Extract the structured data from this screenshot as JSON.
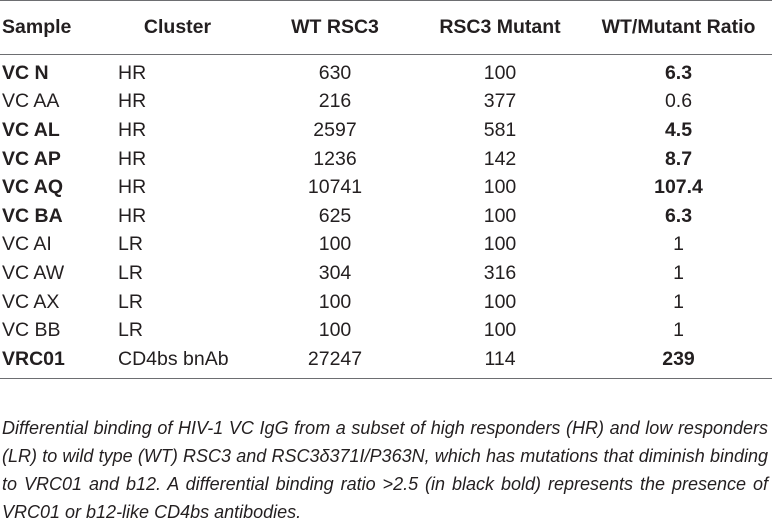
{
  "table": {
    "headers": [
      "Sample",
      "Cluster",
      "WT RSC3",
      "RSC3 Mutant",
      "WT/Mutant Ratio"
    ],
    "rows": [
      {
        "sample": "VC N",
        "cluster": "HR",
        "wt": "630",
        "mutant": "100",
        "ratio": "6.3",
        "bold": true
      },
      {
        "sample": "VC AA",
        "cluster": "HR",
        "wt": "216",
        "mutant": "377",
        "ratio": "0.6",
        "bold": false
      },
      {
        "sample": "VC AL",
        "cluster": "HR",
        "wt": "2597",
        "mutant": "581",
        "ratio": "4.5",
        "bold": true
      },
      {
        "sample": "VC AP",
        "cluster": "HR",
        "wt": "1236",
        "mutant": "142",
        "ratio": "8.7",
        "bold": true
      },
      {
        "sample": "VC AQ",
        "cluster": "HR",
        "wt": "10741",
        "mutant": "100",
        "ratio": "107.4",
        "bold": true
      },
      {
        "sample": "VC BA",
        "cluster": "HR",
        "wt": "625",
        "mutant": "100",
        "ratio": "6.3",
        "bold": true
      },
      {
        "sample": "VC AI",
        "cluster": "LR",
        "wt": "100",
        "mutant": "100",
        "ratio": "1",
        "bold": false
      },
      {
        "sample": "VC AW",
        "cluster": "LR",
        "wt": "304",
        "mutant": "316",
        "ratio": "1",
        "bold": false
      },
      {
        "sample": "VC AX",
        "cluster": "LR",
        "wt": "100",
        "mutant": "100",
        "ratio": "1",
        "bold": false
      },
      {
        "sample": "VC BB",
        "cluster": "LR",
        "wt": "100",
        "mutant": "100",
        "ratio": "1",
        "bold": false
      },
      {
        "sample": "VRC01",
        "cluster": "CD4bs bnAb",
        "wt": "27247",
        "mutant": "114",
        "ratio": "239",
        "bold": true
      }
    ]
  },
  "caption": "Differential binding of HIV-1 VC IgG from a subset of high responders (HR) and low responders (LR) to wild type (WT) RSC3 and RSC3δ371I/P363N, which has mutations that diminish binding to VRC01 and b12. A differential binding ratio >2.5 (in black bold) represents the presence of VRC01 or b12-like CD4bs antibodies."
}
